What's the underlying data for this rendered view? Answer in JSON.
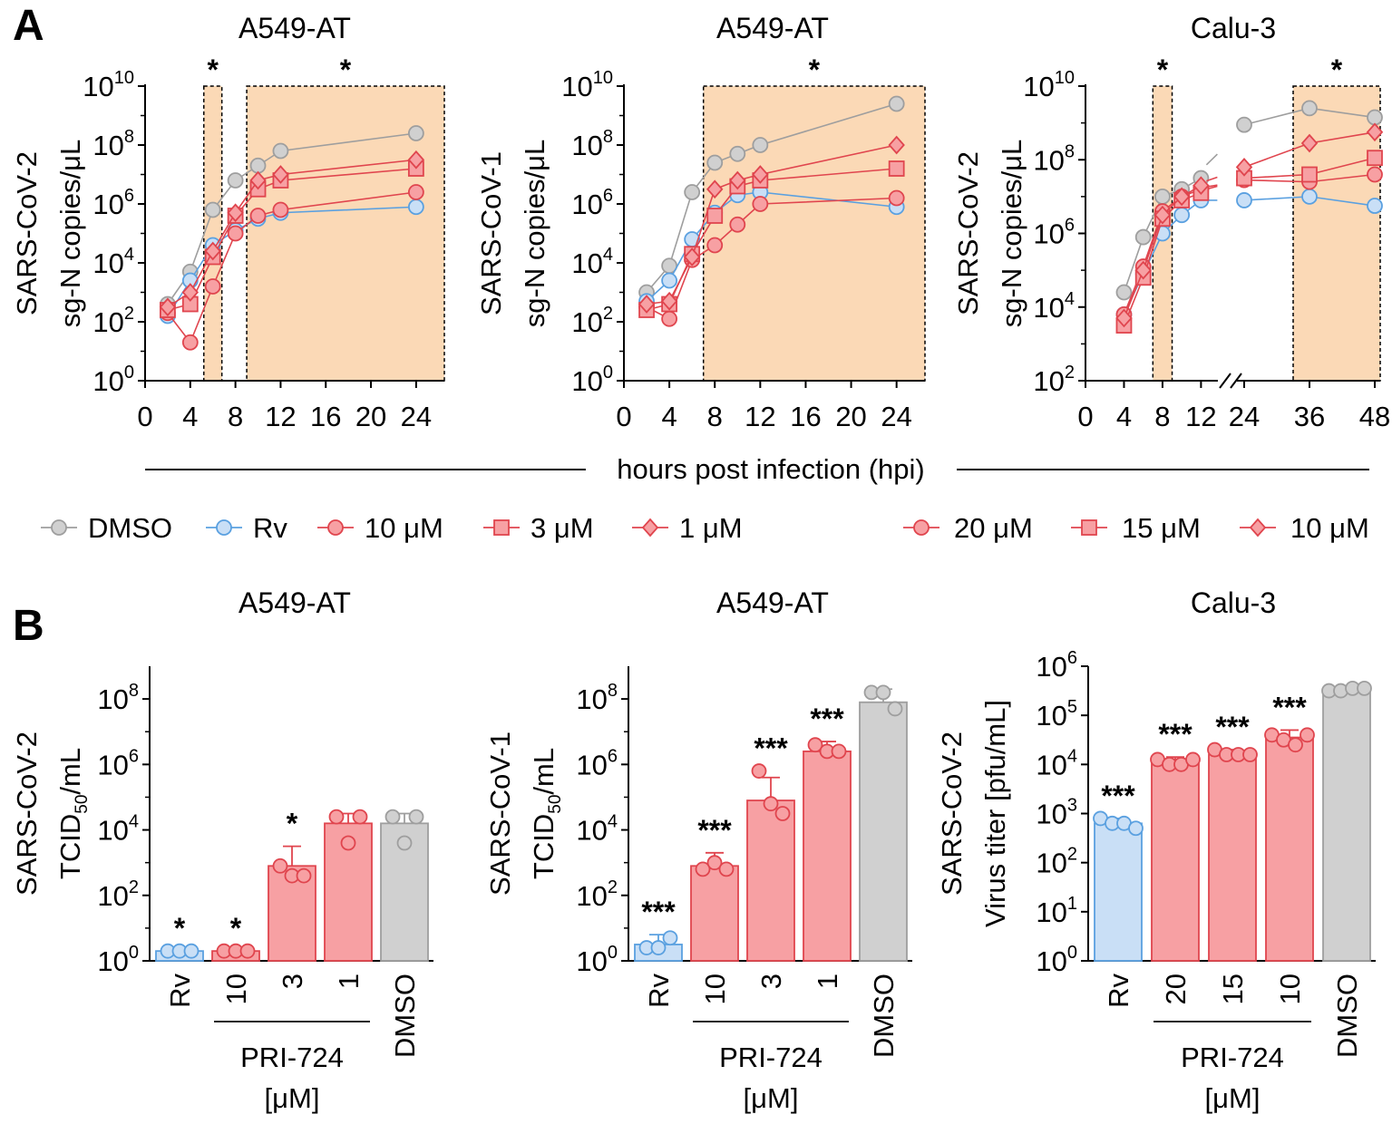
{
  "panel_letters": [
    "A",
    "B"
  ],
  "shared_x_label": "hours post infection (hpi)",
  "colors": {
    "dmso": "#9e9e9e",
    "dmso_fill": "#d0d0d0",
    "rv": "#5aa0e0",
    "rv_fill": "#c9dff6",
    "pri": "#e0454e",
    "pri_fill": "#f7a0a3",
    "shade": "#fbd9b6"
  },
  "legend": {
    "left": [
      {
        "label": "DMSO",
        "marker": "circle",
        "color": "dmso"
      },
      {
        "label": "Rv",
        "marker": "circle",
        "color": "rv"
      },
      {
        "label": "10 μM",
        "marker": "circle",
        "color": "pri"
      },
      {
        "label": "3 μM",
        "marker": "square",
        "color": "pri"
      },
      {
        "label": "1 μM",
        "marker": "diamond",
        "color": "pri"
      }
    ],
    "right": [
      {
        "label": "20 μM",
        "marker": "circle",
        "color": "pri"
      },
      {
        "label": "15 μM",
        "marker": "square",
        "color": "pri"
      },
      {
        "label": "10 μM",
        "marker": "diamond",
        "color": "pri"
      }
    ]
  },
  "chart_data": [
    {
      "panel": "A1",
      "type": "line",
      "title": "A549-AT",
      "ylabel_lines": [
        "SARS-CoV-2",
        "sg-N copies/μL"
      ],
      "yscale": "log10",
      "ylim_exp": [
        0,
        10
      ],
      "yticks": [
        {
          "base": "10",
          "exp": "0"
        },
        {
          "base": "10",
          "exp": "2"
        },
        {
          "base": "10",
          "exp": "4"
        },
        {
          "base": "10",
          "exp": "6"
        },
        {
          "base": "10",
          "exp": "8"
        },
        {
          "base": "10",
          "exp": "10"
        }
      ],
      "xticks": [
        "0",
        "4",
        "8",
        "12",
        "16",
        "20",
        "24"
      ],
      "xlim": [
        0,
        26.5
      ],
      "shaded_regions": [
        {
          "x0": 5.2,
          "x1": 6.8,
          "label": "*"
        },
        {
          "x0": 9,
          "x1": 26.5,
          "label": "*"
        }
      ],
      "series": [
        {
          "name": "DMSO",
          "marker": "circle",
          "color": "dmso",
          "x": [
            2,
            4,
            6,
            8,
            10,
            12,
            24
          ],
          "y_exp": [
            2.6,
            3.7,
            5.8,
            6.8,
            7.3,
            7.8,
            8.4
          ]
        },
        {
          "name": "Rv",
          "marker": "circle",
          "color": "rv",
          "x": [
            2,
            4,
            6,
            8,
            10,
            12,
            24
          ],
          "y_exp": [
            2.2,
            3.4,
            4.6,
            5.1,
            5.5,
            5.7,
            5.9
          ]
        },
        {
          "name": "10 μM",
          "marker": "circle",
          "color": "pri",
          "x": [
            2,
            4,
            6,
            8,
            10,
            12,
            24
          ],
          "y_exp": [
            2.3,
            1.3,
            3.2,
            5.0,
            5.6,
            5.8,
            6.4
          ]
        },
        {
          "name": "3 μM",
          "marker": "square",
          "color": "pri",
          "x": [
            2,
            4,
            6,
            8,
            10,
            12,
            24
          ],
          "y_exp": [
            2.4,
            2.6,
            4.2,
            5.6,
            6.5,
            6.8,
            7.2
          ]
        },
        {
          "name": "1 μM",
          "marker": "diamond",
          "color": "pri",
          "x": [
            2,
            4,
            6,
            8,
            10,
            12,
            24
          ],
          "y_exp": [
            2.5,
            3.0,
            4.4,
            5.7,
            6.8,
            7.0,
            7.5
          ]
        }
      ]
    },
    {
      "panel": "A2",
      "type": "line",
      "title": "A549-AT",
      "ylabel_lines": [
        "SARS-CoV-1",
        "sg-N copies/μL"
      ],
      "yscale": "log10",
      "ylim_exp": [
        0,
        10
      ],
      "yticks": [
        {
          "base": "10",
          "exp": "0"
        },
        {
          "base": "10",
          "exp": "2"
        },
        {
          "base": "10",
          "exp": "4"
        },
        {
          "base": "10",
          "exp": "6"
        },
        {
          "base": "10",
          "exp": "8"
        },
        {
          "base": "10",
          "exp": "10"
        }
      ],
      "xticks": [
        "0",
        "4",
        "8",
        "12",
        "16",
        "20",
        "24"
      ],
      "xlim": [
        0,
        26.5
      ],
      "shaded_regions": [
        {
          "x0": 7,
          "x1": 26.5,
          "label": "*"
        }
      ],
      "series": [
        {
          "name": "DMSO",
          "marker": "circle",
          "color": "dmso",
          "x": [
            2,
            4,
            6,
            8,
            10,
            12,
            24
          ],
          "y_exp": [
            3.0,
            3.9,
            6.4,
            7.4,
            7.7,
            8.0,
            9.4
          ]
        },
        {
          "name": "Rv",
          "marker": "circle",
          "color": "rv",
          "x": [
            2,
            4,
            6,
            8,
            10,
            12,
            24
          ],
          "y_exp": [
            2.7,
            3.4,
            4.8,
            5.7,
            6.3,
            6.4,
            5.9
          ]
        },
        {
          "name": "10 μM",
          "marker": "circle",
          "color": "pri",
          "x": [
            2,
            4,
            6,
            8,
            10,
            12,
            24
          ],
          "y_exp": [
            2.5,
            2.1,
            4.1,
            4.6,
            5.3,
            6.0,
            6.2
          ]
        },
        {
          "name": "3 μM",
          "marker": "square",
          "color": "pri",
          "x": [
            2,
            4,
            6,
            8,
            10,
            12,
            24
          ],
          "y_exp": [
            2.4,
            2.6,
            4.3,
            5.6,
            6.6,
            6.8,
            7.2
          ]
        },
        {
          "name": "1 μM",
          "marker": "diamond",
          "color": "pri",
          "x": [
            2,
            4,
            6,
            8,
            10,
            12,
            24
          ],
          "y_exp": [
            2.6,
            2.7,
            4.2,
            6.5,
            6.8,
            7.0,
            8.0
          ]
        }
      ]
    },
    {
      "panel": "A3",
      "type": "line",
      "title": "Calu-3",
      "ylabel_lines": [
        "SARS-CoV-2",
        "sg-N copies/μL"
      ],
      "yscale": "log10",
      "ylim_exp": [
        2,
        10
      ],
      "yticks": [
        {
          "base": "10",
          "exp": "2"
        },
        {
          "base": "10",
          "exp": "4"
        },
        {
          "base": "10",
          "exp": "6"
        },
        {
          "base": "10",
          "exp": "8"
        },
        {
          "base": "10",
          "exp": "10"
        }
      ],
      "xticks": [
        "0",
        "4",
        "8",
        "12",
        "24",
        "36",
        "48"
      ],
      "x_segments": [
        {
          "x0": 0,
          "x1": 13,
          "scale": 10.6
        },
        {
          "x0": 24,
          "x1": 49,
          "scale": 11.4
        }
      ],
      "shaded_regions": [
        {
          "x0": 7,
          "x1": 9,
          "label": "*"
        },
        {
          "x0": 33,
          "x1": 49,
          "label": "*"
        }
      ],
      "series": [
        {
          "name": "DMSO",
          "marker": "circle",
          "color": "dmso",
          "x": [
            4,
            6,
            8,
            10,
            12,
            24,
            36,
            48
          ],
          "y_exp": [
            4.4,
            5.9,
            7.0,
            7.2,
            7.5,
            8.95,
            9.4,
            9.15
          ]
        },
        {
          "name": "Rv",
          "marker": "circle",
          "color": "rv",
          "x": [
            4,
            6,
            8,
            10,
            12,
            24,
            36,
            48
          ],
          "y_exp": [
            3.8,
            4.9,
            6.0,
            6.5,
            6.9,
            6.9,
            7.0,
            6.75
          ]
        },
        {
          "name": "20 μM",
          "marker": "circle",
          "color": "pri",
          "x": [
            4,
            6,
            8,
            10,
            12,
            24,
            36,
            48
          ],
          "y_exp": [
            3.8,
            5.1,
            6.6,
            7.0,
            7.2,
            7.45,
            7.4,
            7.6
          ]
        },
        {
          "name": "15 μM",
          "marker": "square",
          "color": "pri",
          "x": [
            4,
            6,
            8,
            10,
            12,
            24,
            36,
            48
          ],
          "y_exp": [
            3.5,
            4.8,
            6.4,
            6.9,
            7.1,
            7.5,
            7.6,
            8.05
          ]
        },
        {
          "name": "10 μM",
          "marker": "diamond",
          "color": "pri",
          "x": [
            4,
            6,
            8,
            10,
            12,
            24,
            36,
            48
          ],
          "y_exp": [
            3.7,
            5.0,
            6.5,
            7.0,
            7.3,
            7.8,
            8.45,
            8.75
          ]
        }
      ]
    },
    {
      "panel": "B1",
      "type": "bar",
      "title": "A549-AT",
      "ylabel_lines": [
        "SARS-CoV-2",
        "TCID50/mL"
      ],
      "ylabel_sub": {
        "main": "TCID",
        "sub": "50",
        "rest": "/mL"
      },
      "yscale": "log10",
      "ylim_exp": [
        0,
        9
      ],
      "yticks": [
        {
          "base": "10",
          "exp": "0"
        },
        {
          "base": "10",
          "exp": "2"
        },
        {
          "base": "10",
          "exp": "4"
        },
        {
          "base": "10",
          "exp": "6"
        },
        {
          "base": "10",
          "exp": "8"
        }
      ],
      "categories": [
        "Rv",
        "10",
        "3",
        "1",
        "DMSO"
      ],
      "bar_colors": [
        "rv",
        "pri",
        "pri",
        "pri",
        "dmso"
      ],
      "values_exp": [
        0.3,
        0.3,
        2.9,
        4.2,
        4.2
      ],
      "error_exp": [
        0.0,
        0.0,
        0.6,
        0.3,
        0.3
      ],
      "points_exp": [
        [
          0.3,
          0.3,
          0.3
        ],
        [
          0.3,
          0.3,
          0.3
        ],
        [
          2.9,
          2.6,
          2.6
        ],
        [
          4.4,
          3.6,
          4.4
        ],
        [
          4.4,
          3.6,
          4.4
        ]
      ],
      "significance": [
        "*",
        "*",
        "*",
        "",
        ""
      ],
      "group_label": [
        "PRI-724",
        "[μM]"
      ]
    },
    {
      "panel": "B2",
      "type": "bar",
      "title": "A549-AT",
      "ylabel_lines": [
        "SARS-CoV-1",
        "TCID50/mL"
      ],
      "ylabel_sub": {
        "main": "TCID",
        "sub": "50",
        "rest": "/mL"
      },
      "yscale": "log10",
      "ylim_exp": [
        0,
        9
      ],
      "yticks": [
        {
          "base": "10",
          "exp": "0"
        },
        {
          "base": "10",
          "exp": "2"
        },
        {
          "base": "10",
          "exp": "4"
        },
        {
          "base": "10",
          "exp": "6"
        },
        {
          "base": "10",
          "exp": "8"
        }
      ],
      "categories": [
        "Rv",
        "10",
        "3",
        "1",
        "DMSO"
      ],
      "bar_colors": [
        "rv",
        "pri",
        "pri",
        "pri",
        "dmso"
      ],
      "values_exp": [
        0.5,
        2.9,
        4.9,
        6.4,
        7.9
      ],
      "error_exp": [
        0.3,
        0.4,
        0.7,
        0.3,
        0.4
      ],
      "points_exp": [
        [
          0.4,
          0.4,
          0.7
        ],
        [
          2.8,
          3.0,
          2.8
        ],
        [
          5.8,
          4.8,
          4.5
        ],
        [
          6.6,
          6.4,
          6.4
        ],
        [
          8.2,
          8.2,
          7.7
        ]
      ],
      "significance": [
        "***",
        "***",
        "***",
        "***",
        ""
      ],
      "group_label": [
        "PRI-724",
        "[μM]"
      ]
    },
    {
      "panel": "B3",
      "type": "bar",
      "title": "Calu-3",
      "ylabel_lines": [
        "SARS-CoV-2",
        "Virus titer [pfu/mL]"
      ],
      "yscale": "log10",
      "ylim_exp": [
        0,
        6
      ],
      "yticks": [
        {
          "base": "10",
          "exp": "0"
        },
        {
          "base": "10",
          "exp": "1"
        },
        {
          "base": "10",
          "exp": "2"
        },
        {
          "base": "10",
          "exp": "3"
        },
        {
          "base": "10",
          "exp": "4"
        },
        {
          "base": "10",
          "exp": "5"
        },
        {
          "base": "10",
          "exp": "6"
        }
      ],
      "categories": [
        "Rv",
        "20",
        "15",
        "10",
        "DMSO"
      ],
      "bar_colors": [
        "rv",
        "pri",
        "pri",
        "pri",
        "dmso"
      ],
      "values_exp": [
        2.8,
        4.05,
        4.2,
        4.55,
        5.5
      ],
      "error_exp": [
        0.1,
        0.1,
        0.1,
        0.15,
        0.05
      ],
      "points_exp": [
        [
          2.9,
          2.8,
          2.8,
          2.7
        ],
        [
          4.1,
          4.0,
          4.0,
          4.1
        ],
        [
          4.3,
          4.2,
          4.2,
          4.2
        ],
        [
          4.6,
          4.5,
          4.4,
          4.6
        ],
        [
          5.5,
          5.5,
          5.55,
          5.55
        ]
      ],
      "significance": [
        "***",
        "***",
        "***",
        "***",
        ""
      ],
      "group_label": [
        "PRI-724",
        "[μM]"
      ]
    }
  ]
}
